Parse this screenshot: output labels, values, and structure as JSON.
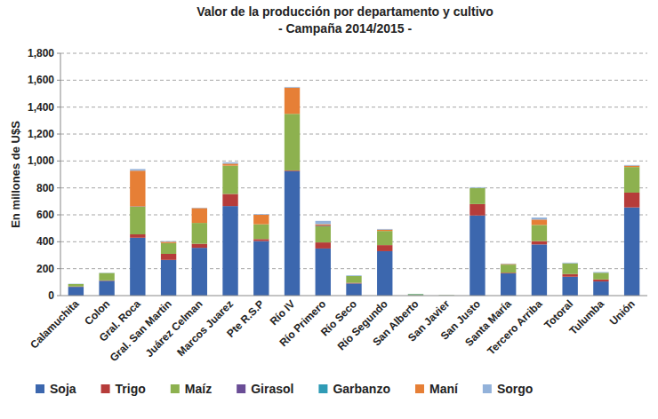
{
  "chart_data": {
    "type": "bar",
    "title": "Valor de la producción por departamento y cultivo",
    "subtitle": "- Campaña 2014/2015 -",
    "y_label": "En millones de U$S",
    "stacked": true,
    "grid": true,
    "legend": "bottom",
    "ylim": [
      0,
      1800
    ],
    "yticks": [
      0,
      200,
      400,
      600,
      800,
      {
        "value": 1000,
        "label": "1,000"
      },
      {
        "value": 1200,
        "label": "1,200"
      },
      {
        "value": 1400,
        "label": "1,400"
      },
      {
        "value": 1600,
        "label": "1,600"
      },
      {
        "value": 1800,
        "label": "1,800"
      }
    ],
    "categories": [
      "Calamuchita",
      "Colon",
      "Gral. Roca",
      "Gral. San Martin",
      "Juárez Celman",
      "Marcos Juarez",
      "Pte R.S.P",
      "Río IV",
      "Río Primero",
      "Río Seco",
      "Río Segundo",
      "San Alberto",
      "San Javier",
      "San Justo",
      "Santa María",
      "Tercero Arriba",
      "Totoral",
      "Tulumba",
      "Unión"
    ],
    "series": [
      {
        "name": "Soja",
        "color": "#3c67ae",
        "values": [
          65,
          110,
          430,
          265,
          355,
          665,
          405,
          925,
          350,
          90,
          330,
          3,
          1,
          595,
          165,
          380,
          140,
          105,
          655
        ]
      },
      {
        "name": "Trigo",
        "color": "#b63c3a",
        "values": [
          3,
          3,
          25,
          45,
          30,
          90,
          15,
          5,
          45,
          5,
          45,
          0,
          0,
          85,
          5,
          25,
          20,
          15,
          110
        ]
      },
      {
        "name": "Maíz",
        "color": "#8db14f",
        "values": [
          18,
          55,
          205,
          80,
          155,
          210,
          110,
          420,
          120,
          50,
          105,
          8,
          2,
          120,
          60,
          120,
          80,
          50,
          190
        ]
      },
      {
        "name": "Girasol",
        "color": "#6a4d96",
        "values": [
          0,
          0,
          3,
          0,
          0,
          0,
          0,
          0,
          5,
          0,
          0,
          0,
          0,
          0,
          0,
          0,
          0,
          0,
          0
        ]
      },
      {
        "name": "Garbanzo",
        "color": "#2f9bb5",
        "values": [
          0,
          0,
          0,
          0,
          0,
          0,
          0,
          0,
          0,
          0,
          0,
          2,
          0,
          0,
          0,
          0,
          0,
          0,
          0
        ]
      },
      {
        "name": "Maní",
        "color": "#e67f36",
        "values": [
          0,
          0,
          265,
          10,
          110,
          15,
          70,
          195,
          10,
          0,
          10,
          0,
          0,
          0,
          5,
          40,
          0,
          0,
          10
        ]
      },
      {
        "name": "Sorgo",
        "color": "#93b2da",
        "values": [
          2,
          2,
          12,
          5,
          3,
          10,
          5,
          5,
          25,
          5,
          5,
          0,
          0,
          5,
          3,
          15,
          5,
          5,
          5
        ]
      }
    ]
  }
}
